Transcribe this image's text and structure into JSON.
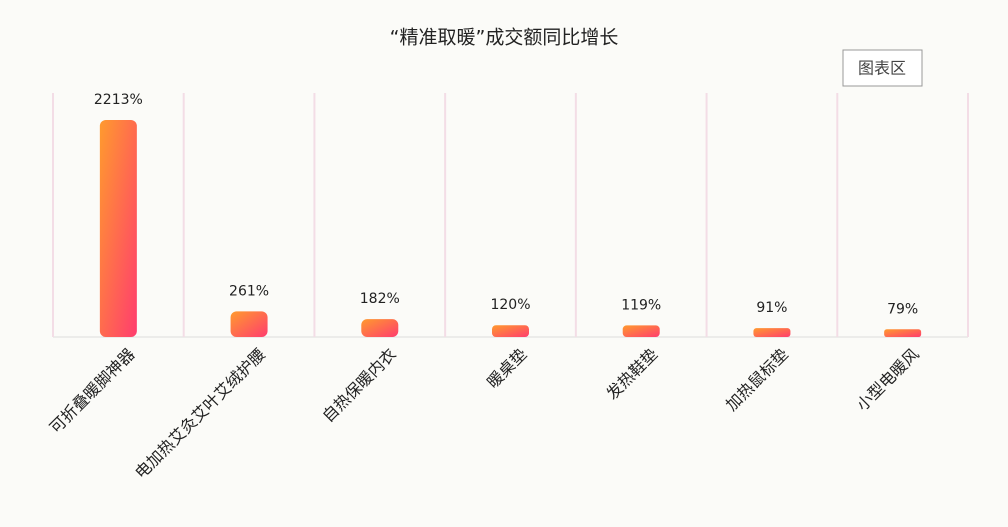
{
  "chart_data": {
    "type": "bar",
    "title": "“精准取暖”成交额同比增长",
    "categories": [
      "可折叠暖脚神器",
      "电加热艾灸艾叶艾绒护腰",
      "自热保暖内衣",
      "暖桌垫",
      "发热鞋垫",
      "加热鼠标垫",
      "小型电暖风"
    ],
    "values": [
      2213,
      261,
      182,
      120,
      119,
      91,
      79
    ],
    "value_labels": [
      "2213%",
      "261%",
      "182%",
      "120%",
      "119%",
      "91%",
      "79%"
    ],
    "color": "#ff7a45",
    "grid": true
  },
  "toolbar": {
    "button": "图表区"
  }
}
